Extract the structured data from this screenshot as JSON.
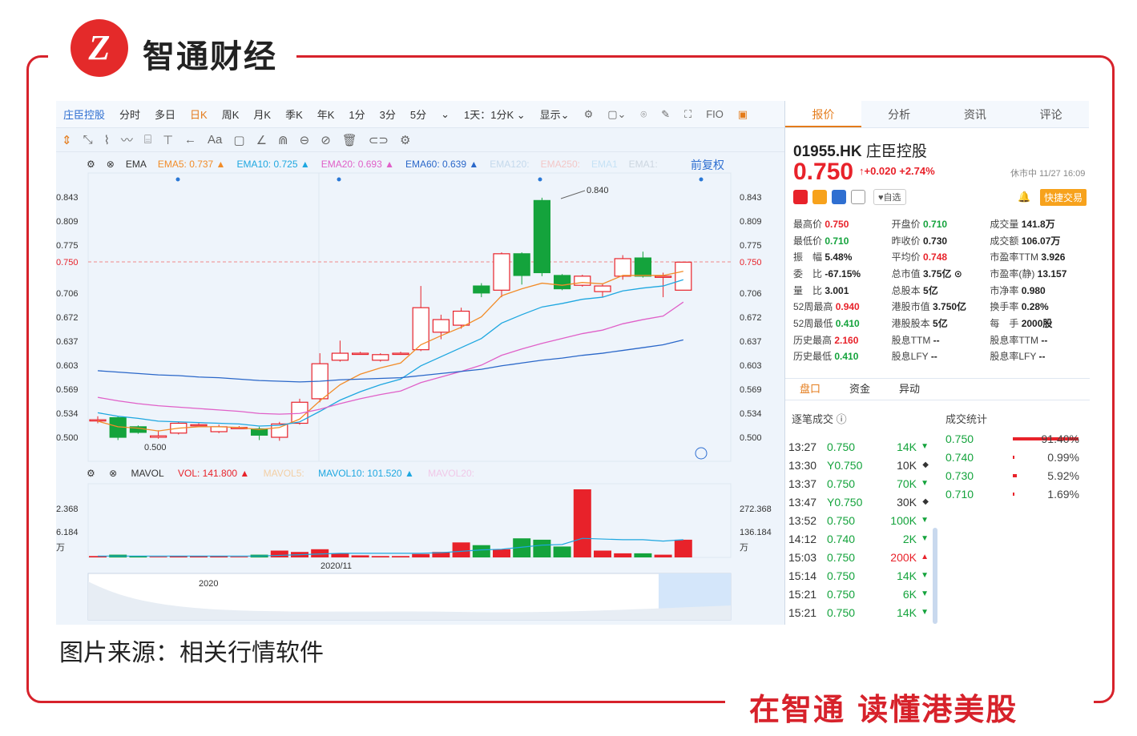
{
  "brand": {
    "name": "智通财经",
    "slogan": "在智通  读懂港美股",
    "logo_text": "Z"
  },
  "caption": "图片来源：相关行情软件",
  "toolbar": {
    "items": [
      "庄臣控股",
      "分时",
      "多日",
      "日K",
      "周K",
      "月K",
      "季K",
      "年K",
      "1分",
      "3分",
      "5分",
      "⌄",
      "1天：1分K ⌄",
      "显示⌄"
    ],
    "selected": "日K",
    "icons": [
      "gear-icon",
      "square-icon",
      "camera-icon",
      "pen-icon",
      "fullscreen-icon",
      "fib-icon",
      "panel-icon"
    ]
  },
  "drawing_tools": [
    "⇕",
    "⤡",
    "⌇",
    "〰",
    "⌸",
    "⊤",
    "←",
    "Aa",
    "▢",
    "∠",
    "⋒",
    "⊖",
    "⊘",
    "🗑",
    "⊂⊃",
    "⚙"
  ],
  "ema": {
    "label": "EMA",
    "ema5": "EMA5: 0.737 ▲",
    "ema10": "EMA10: 0.725 ▲",
    "ema20": "EMA20: 0.693 ▲",
    "ema60": "EMA60: 0.639 ▲",
    "ema120": "EMA120:",
    "ema250": "EMA250:",
    "ema_1": "EMA1",
    "ema_2": "EMA1:",
    "restore": "前复权"
  },
  "colors": {
    "ema5": "#f28c28",
    "ema10": "#1ea7e0",
    "ema20": "#e060c8",
    "ema60": "#2a67c9",
    "up": "#e8222a",
    "down": "#14a33c",
    "accent": "#e47b1a"
  },
  "price_axis": {
    "left": [
      "0.843",
      "0.809",
      "0.775",
      "0.750",
      "0.706",
      "0.672",
      "0.637",
      "0.603",
      "0.569",
      "0.534",
      "0.500"
    ],
    "right": [
      "0.843",
      "0.809",
      "0.775",
      "0.750",
      "0.706",
      "0.672",
      "0.637",
      "0.603",
      "0.569",
      "0.534",
      "0.500"
    ],
    "high_label": "0.840",
    "low_label": "0.500"
  },
  "mavol": {
    "label": "MAVOL",
    "vol": "VOL: 141.800 ▲",
    "mavol5": "MAVOL5:",
    "mavol10": "MAVOL10: 101.520 ▲",
    "mavol20": "MAVOL20:",
    "left_axis": [
      "2.368",
      "6.184",
      "万"
    ],
    "right_axis": [
      "272.368",
      "136.184",
      "万"
    ],
    "date_label": "2020/11",
    "nav_label": "2020"
  },
  "quote": {
    "tabs": [
      "报价",
      "分析",
      "资讯",
      "评论"
    ],
    "code": "01955.HK",
    "name": "庄臣控股",
    "price": "0.750",
    "change": "↑+0.020 +2.74%",
    "status": "休市中 11/27 16:09",
    "fav": "♥自选",
    "quick_trade": "快捷交易",
    "grid": [
      [
        [
          "最高价",
          "0.750",
          "red"
        ],
        [
          "开盘价",
          "0.710",
          "green"
        ],
        [
          "成交量",
          "141.8万",
          "dark"
        ]
      ],
      [
        [
          "最低价",
          "0.710",
          "green"
        ],
        [
          "昨收价",
          "0.730",
          "dark"
        ],
        [
          "成交额",
          "106.07万",
          "dark"
        ]
      ],
      [
        [
          "振　幅",
          "5.48%",
          "dark"
        ],
        [
          "平均价",
          "0.748",
          "red"
        ],
        [
          "市盈率TTM",
          "3.926",
          "dark"
        ]
      ],
      [
        [
          "委　比",
          "-67.15%",
          "dark"
        ],
        [
          "总市值",
          "3.75亿 ⊙",
          "dark"
        ],
        [
          "市盈率(静)",
          "13.157",
          "dark"
        ]
      ],
      [
        [
          "量　比",
          "3.001",
          "dark"
        ],
        [
          "总股本",
          "5亿",
          "dark"
        ],
        [
          "市净率",
          "0.980",
          "dark"
        ]
      ],
      [
        [
          "52周最高",
          "0.940",
          "red"
        ],
        [
          "港股市值",
          "3.750亿",
          "dark"
        ],
        [
          "换手率",
          "0.28%",
          "dark"
        ]
      ],
      [
        [
          "52周最低",
          "0.410",
          "green"
        ],
        [
          "港股股本",
          "5亿",
          "dark"
        ],
        [
          "每　手",
          "2000股",
          "dark"
        ]
      ],
      [
        [
          "历史最高",
          "2.160",
          "red"
        ],
        [
          "股息TTM",
          "--",
          "dark"
        ],
        [
          "股息率TTM",
          "--",
          "dark"
        ]
      ],
      [
        [
          "历史最低",
          "0.410",
          "green"
        ],
        [
          "股息LFY",
          "--",
          "dark"
        ],
        [
          "股息率LFY",
          "--",
          "dark"
        ]
      ]
    ],
    "subtabs": [
      "盘口",
      "资金",
      "异动"
    ],
    "tick_header": "逐笔成交 ⓘ",
    "stat_header": "成交统计",
    "ticks": [
      [
        "13:27",
        "0.750",
        "14K",
        "▼"
      ],
      [
        "13:30",
        "Y0.750",
        "10K",
        "◆"
      ],
      [
        "13:37",
        "0.750",
        "70K",
        "▼"
      ],
      [
        "13:47",
        "Y0.750",
        "30K",
        "◆"
      ],
      [
        "13:52",
        "0.750",
        "100K",
        "▼"
      ],
      [
        "14:12",
        "0.740",
        "2K",
        "▼"
      ],
      [
        "15:03",
        "0.750",
        "200K",
        "▲"
      ],
      [
        "15:14",
        "0.750",
        "14K",
        "▼"
      ],
      [
        "15:21",
        "0.750",
        "6K",
        "▼"
      ],
      [
        "15:21",
        "0.750",
        "14K",
        "▼"
      ]
    ],
    "stats": [
      [
        "0.750",
        "91.40%"
      ],
      [
        "0.740",
        "0.99%"
      ],
      [
        "0.730",
        "5.92%"
      ],
      [
        "0.710",
        "1.69%"
      ]
    ]
  }
}
